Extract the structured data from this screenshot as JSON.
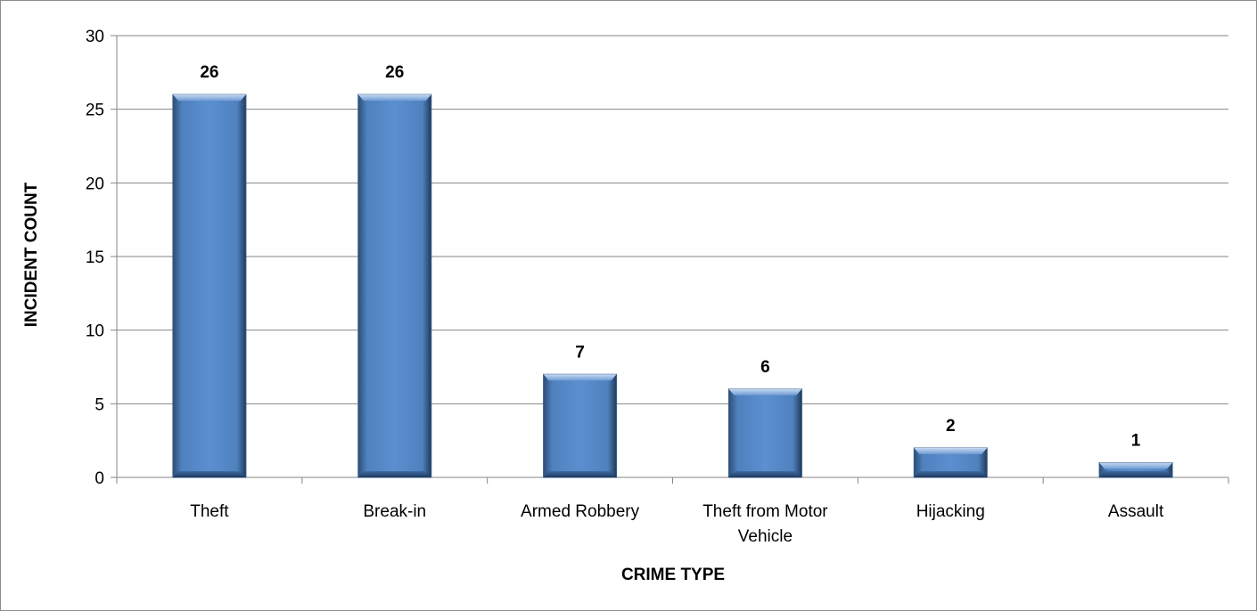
{
  "chart_data": {
    "type": "bar",
    "categories": [
      "Theft",
      "Break-in",
      "Armed Robbery",
      "Theft from Motor Vehicle",
      "Hijacking",
      "Assault"
    ],
    "category_lines": [
      [
        "Theft"
      ],
      [
        "Break-in"
      ],
      [
        "Armed Robbery"
      ],
      [
        "Theft from Motor",
        "Vehicle"
      ],
      [
        "Hijacking"
      ],
      [
        "Assault"
      ]
    ],
    "values": [
      26,
      26,
      7,
      6,
      2,
      1
    ],
    "data_labels": [
      "26",
      "26",
      "7",
      "6",
      "2",
      "1"
    ],
    "title": "",
    "xlabel": "CRIME TYPE",
    "ylabel": "INCIDENT COUNT",
    "ylim": [
      0,
      30
    ],
    "yticks": [
      0,
      5,
      10,
      15,
      20,
      25,
      30
    ],
    "grid": true,
    "legend": "none",
    "colors": {
      "bar": "#4f81bd",
      "bar_light": "#8db3e2",
      "bar_dark": "#2c4d75",
      "grid": "#868686",
      "axis": "#868686"
    }
  }
}
